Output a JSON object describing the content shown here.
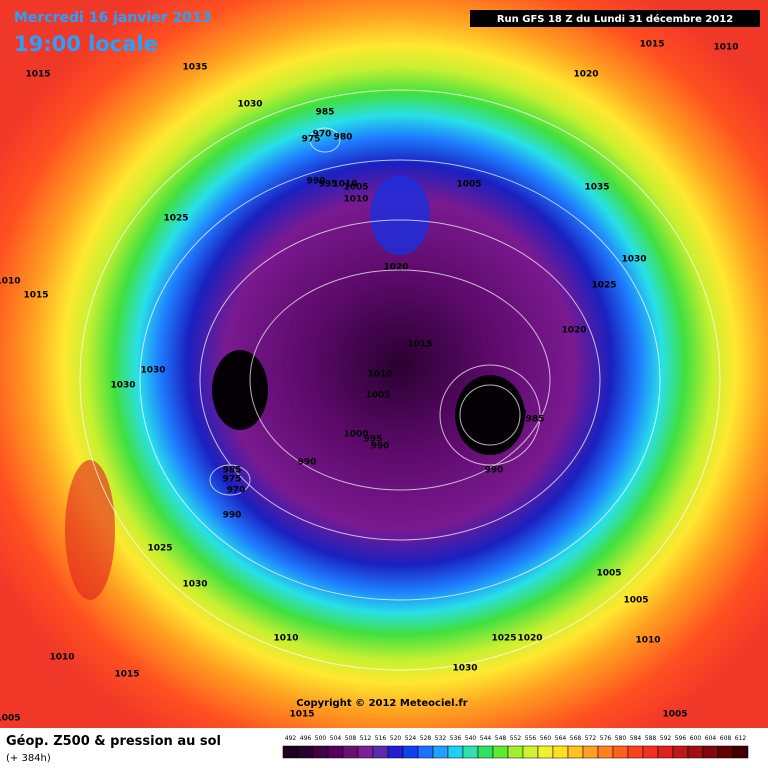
{
  "header": {
    "date": "Mercredi 16 janvier 2013",
    "time": "19:00 locale",
    "run": "Run GFS 18 Z du Lundi 31 décembre 2012"
  },
  "pressure_labels": [
    1015,
    1035,
    1030,
    985,
    970,
    980,
    975,
    990,
    995,
    1010,
    1005,
    1010,
    1005,
    1020,
    1015,
    1010,
    1035,
    1025,
    1020,
    1030,
    1025,
    1020,
    1010,
    1015,
    1015,
    1030,
    1030,
    1010,
    1005,
    980,
    985,
    1000,
    995,
    990,
    990,
    990,
    985,
    975,
    970,
    990,
    1025,
    1030,
    1005,
    1005,
    1010,
    1025,
    1020,
    1010,
    1010,
    1015,
    1030,
    1005,
    1005,
    1015
  ],
  "copyright": "Copyright © 2012 Meteociel.fr",
  "footer": {
    "title": "Géop. Z500 & pression au sol",
    "lead": "(+ 384h)"
  },
  "scale": [
    492,
    496,
    500,
    504,
    508,
    512,
    516,
    520,
    524,
    528,
    532,
    536,
    540,
    544,
    548,
    552,
    556,
    560,
    564,
    568,
    572,
    576,
    580,
    584,
    588,
    592,
    596,
    600,
    604,
    608,
    612
  ]
}
